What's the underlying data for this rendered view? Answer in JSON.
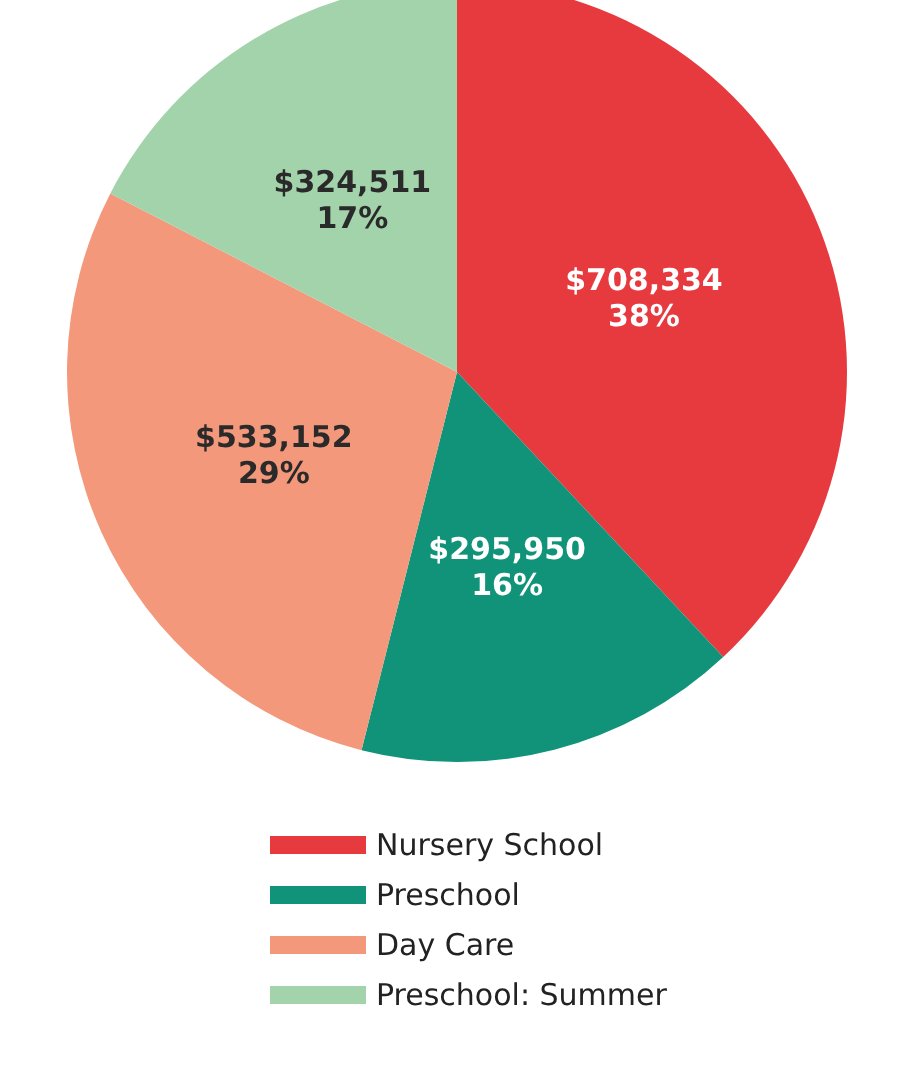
{
  "chart_data": {
    "type": "pie",
    "categories": [
      "Nursery School",
      "Preschool",
      "Day Care",
      "Preschool: Summer"
    ],
    "values": [
      708334,
      295950,
      533152,
      324511
    ],
    "colors": [
      "#e63a3f",
      "#11937a",
      "#f4987c",
      "#a3d3ab"
    ],
    "value_labels": [
      "$708,334\n38%",
      "$295,950\n16%",
      "$533,152\n29%",
      "$324,511\n17%"
    ],
    "legend": "bottom"
  }
}
